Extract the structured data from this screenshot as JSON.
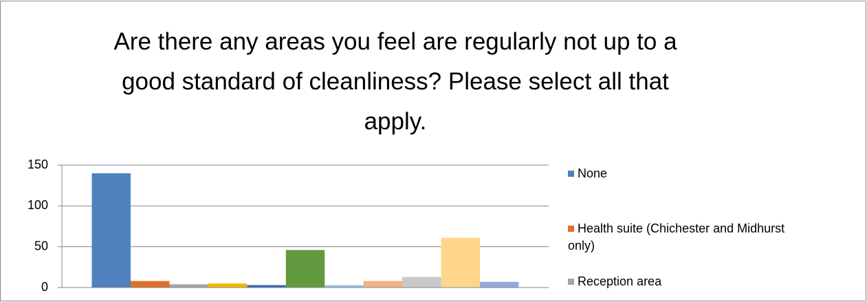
{
  "chart_data": {
    "type": "bar",
    "title": "Are there any areas you feel are regularly not up to a good standard of cleanliness? Please select all that apply.",
    "categories": [
      null
    ],
    "series": [
      {
        "name": "None",
        "color": "#4f81bd",
        "values": [
          140
        ]
      },
      {
        "name": "Health suite (Chichester and Midhurst only)",
        "color": "#e0702a",
        "values": [
          8
        ]
      },
      {
        "name": "Reception area",
        "color": "#a5a5a5",
        "values": [
          4
        ]
      },
      {
        "color": "#f2b800",
        "values": [
          5
        ]
      },
      {
        "color": "#3a66b5",
        "values": [
          3
        ]
      },
      {
        "color": "#62993e",
        "values": [
          46
        ]
      },
      {
        "color": "#9dc3e6",
        "values": [
          3
        ]
      },
      {
        "color": "#f4b183",
        "values": [
          8
        ]
      },
      {
        "color": "#c9c9c9",
        "values": [
          13
        ]
      },
      {
        "color": "#ffd68a",
        "values": [
          61
        ]
      },
      {
        "color": "#8faadc",
        "values": [
          7
        ]
      }
    ],
    "ylim": [
      0,
      150
    ],
    "yticks": [
      0,
      50,
      100,
      150
    ],
    "grid": true
  }
}
